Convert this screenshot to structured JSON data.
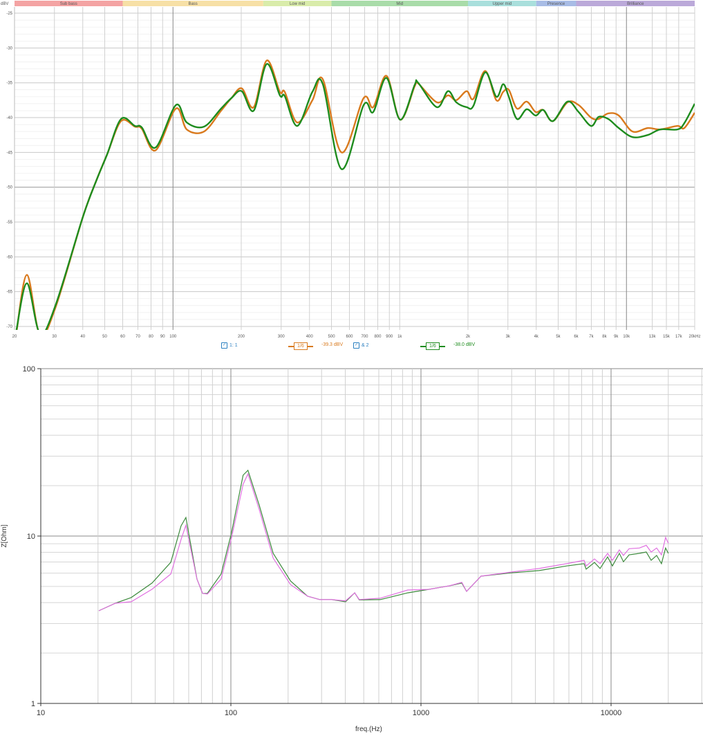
{
  "chart_data": [
    {
      "type": "line",
      "xscale": "log",
      "yunit": "dBV",
      "xlim": [
        20,
        20000
      ],
      "ylim": [
        -70.5,
        -24.1
      ],
      "grid": true,
      "x_tick_labels": [
        "20",
        "30",
        "40",
        "50",
        "60",
        "70",
        "80",
        "90",
        "100",
        "200",
        "300",
        "400",
        "500",
        "600",
        "700",
        "800",
        "900",
        "1k",
        "2k",
        "3k",
        "4k",
        "5k",
        "6k",
        "7k",
        "8k",
        "9k",
        "10k",
        "13k",
        "15k",
        "17k",
        "20kHz"
      ],
      "x_tick_values": [
        20,
        30,
        40,
        50,
        60,
        70,
        80,
        90,
        100,
        200,
        300,
        400,
        500,
        600,
        700,
        800,
        900,
        1000,
        2000,
        3000,
        4000,
        5000,
        6000,
        7000,
        8000,
        9000,
        10000,
        13000,
        15000,
        17000,
        20000
      ],
      "y_tick_labels": [
        "-25",
        "-30",
        "-35",
        "-40",
        "-45",
        "-50",
        "-55",
        "-60",
        "-65",
        "-70"
      ],
      "y_tick_values": [
        -25,
        -30,
        -35,
        -40,
        -45,
        -50,
        -55,
        -60,
        -65,
        -70
      ],
      "bands": [
        {
          "label": "Sub bass",
          "from": 20,
          "to": 60,
          "color": "#f4a3a3"
        },
        {
          "label": "Bass",
          "from": 60,
          "to": 250,
          "color": "#f7e0a6"
        },
        {
          "label": "Low mid",
          "from": 250,
          "to": 500,
          "color": "#d9ecaa"
        },
        {
          "label": "Mid",
          "from": 500,
          "to": 2000,
          "color": "#a9dca9"
        },
        {
          "label": "Upper mid",
          "from": 2000,
          "to": 4000,
          "color": "#a9dfdc"
        },
        {
          "label": "Presence",
          "from": 4000,
          "to": 6000,
          "color": "#a8bce6"
        },
        {
          "label": "Brilliance",
          "from": 6000,
          "to": 20000,
          "color": "#bba9d9"
        }
      ],
      "series": [
        {
          "name": "1: 1",
          "smoothing": "1/6",
          "readout": "-39.3 dBV",
          "color": "#d97a1e",
          "points": [
            [
              20.4,
              -70.8
            ],
            [
              22.7,
              -62.6
            ],
            [
              25.9,
              -71.2
            ],
            [
              30.3,
              -67.3
            ],
            [
              40.1,
              -54.2
            ],
            [
              46.1,
              -48.9
            ],
            [
              51.2,
              -45.3
            ],
            [
              59,
              -40.5
            ],
            [
              67.9,
              -41.3
            ],
            [
              72.8,
              -41.6
            ],
            [
              83.8,
              -44.7
            ],
            [
              103,
              -38.7
            ],
            [
              115,
              -41.7
            ],
            [
              137,
              -42
            ],
            [
              163,
              -39
            ],
            [
              181,
              -37.2
            ],
            [
              201,
              -35.8
            ],
            [
              227,
              -38.5
            ],
            [
              259,
              -31.8
            ],
            [
              296,
              -36.3
            ],
            [
              311,
              -36.3
            ],
            [
              353,
              -40.7
            ],
            [
              412,
              -37.5
            ],
            [
              458,
              -34.5
            ],
            [
              554,
              -45
            ],
            [
              693,
              -37.2
            ],
            [
              764,
              -38.5
            ],
            [
              874,
              -34
            ],
            [
              1005,
              -40.3
            ],
            [
              1164,
              -35.5
            ],
            [
              1206,
              -35.1
            ],
            [
              1458,
              -37.8
            ],
            [
              1632,
              -36.8
            ],
            [
              1776,
              -37.5
            ],
            [
              1972,
              -36.2
            ],
            [
              2114,
              -37.3
            ],
            [
              2382,
              -33.3
            ],
            [
              2667,
              -37.5
            ],
            [
              2860,
              -36.3
            ],
            [
              3027,
              -36
            ],
            [
              3290,
              -38.7
            ],
            [
              3630,
              -37.7
            ],
            [
              3978,
              -39.2
            ],
            [
              4296,
              -38.9
            ],
            [
              4742,
              -40.5
            ],
            [
              5496,
              -37.8
            ],
            [
              6152,
              -38.2
            ],
            [
              6980,
              -40
            ],
            [
              7537,
              -40.2
            ],
            [
              8318,
              -39.4
            ],
            [
              9248,
              -39.7
            ],
            [
              10638,
              -42
            ],
            [
              12416,
              -41.5
            ],
            [
              14086,
              -41.7
            ],
            [
              16790,
              -41.2
            ],
            [
              17996,
              -41.5
            ],
            [
              20000,
              -39.3
            ]
          ]
        },
        {
          "name": "& 2",
          "smoothing": "1/6",
          "readout": "-38.0 dBV",
          "color": "#1e8c1e",
          "points": [
            [
              20.4,
              -70.5
            ],
            [
              22.7,
              -63.8
            ],
            [
              25.9,
              -71
            ],
            [
              30.3,
              -67
            ],
            [
              40.1,
              -54.2
            ],
            [
              46.1,
              -48.9
            ],
            [
              51.2,
              -45.3
            ],
            [
              59,
              -40.2
            ],
            [
              67.9,
              -41.2
            ],
            [
              72.8,
              -41.4
            ],
            [
              83.8,
              -44.3
            ],
            [
              103,
              -38.2
            ],
            [
              115,
              -40.7
            ],
            [
              137,
              -41.3
            ],
            [
              163,
              -38.7
            ],
            [
              181,
              -37.2
            ],
            [
              201,
              -36.2
            ],
            [
              227,
              -39
            ],
            [
              259,
              -32.3
            ],
            [
              296,
              -36.8
            ],
            [
              311,
              -36.9
            ],
            [
              353,
              -41.2
            ],
            [
              412,
              -36.3
            ],
            [
              458,
              -35.2
            ],
            [
              554,
              -47.4
            ],
            [
              693,
              -38.2
            ],
            [
              764,
              -39.2
            ],
            [
              874,
              -34.3
            ],
            [
              1005,
              -40.3
            ],
            [
              1164,
              -35.3
            ],
            [
              1206,
              -35
            ],
            [
              1458,
              -38.5
            ],
            [
              1632,
              -36.2
            ],
            [
              1776,
              -37.8
            ],
            [
              1972,
              -38.5
            ],
            [
              2114,
              -38.3
            ],
            [
              2382,
              -33.5
            ],
            [
              2667,
              -37
            ],
            [
              2860,
              -35.2
            ],
            [
              3027,
              -37
            ],
            [
              3290,
              -40.2
            ],
            [
              3630,
              -38.8
            ],
            [
              3978,
              -39.7
            ],
            [
              4296,
              -38.9
            ],
            [
              4742,
              -40.5
            ],
            [
              5496,
              -37.7
            ],
            [
              6152,
              -39.2
            ],
            [
              6980,
              -41.2
            ],
            [
              7537,
              -39.9
            ],
            [
              8318,
              -40.2
            ],
            [
              9248,
              -41.5
            ],
            [
              10638,
              -42.8
            ],
            [
              12416,
              -42.5
            ],
            [
              14086,
              -41.7
            ],
            [
              16790,
              -41.7
            ],
            [
              17996,
              -40.8
            ],
            [
              20000,
              -38
            ]
          ]
        }
      ]
    },
    {
      "type": "line",
      "xscale": "log",
      "yscale": "log",
      "xlabel": "freq.(Hz)",
      "ylabel": "Z[Ohm]",
      "xlim": [
        10,
        30000
      ],
      "ylim": [
        1,
        100
      ],
      "grid": true,
      "x_tick_labels": [
        "10",
        "100",
        "1000",
        "10000"
      ],
      "x_tick_values": [
        10,
        100,
        1000,
        10000
      ],
      "y_tick_labels": [
        "1",
        "10",
        "100"
      ],
      "y_tick_values": [
        1,
        10,
        100
      ],
      "series": [
        {
          "color": "#3d8a3d",
          "points": [
            [
              20.2,
              3.58
            ],
            [
              24.7,
              3.97
            ],
            [
              29.9,
              4.29
            ],
            [
              38.5,
              5.24
            ],
            [
              48.3,
              6.97
            ],
            [
              54.7,
              11.5
            ],
            [
              58,
              12.9
            ],
            [
              66.3,
              5.54
            ],
            [
              71,
              4.54
            ],
            [
              75.2,
              4.55
            ],
            [
              88.9,
              5.93
            ],
            [
              100.8,
              10.5
            ],
            [
              116,
              23.1
            ],
            [
              123,
              24.7
            ],
            [
              141,
              15.3
            ],
            [
              167,
              7.88
            ],
            [
              206,
              5.39
            ],
            [
              253,
              4.37
            ],
            [
              294,
              4.17
            ],
            [
              340,
              4.17
            ],
            [
              401,
              4.05
            ],
            [
              448,
              4.58
            ],
            [
              474,
              4.15
            ],
            [
              610,
              4.17
            ],
            [
              853,
              4.58
            ],
            [
              1097,
              4.8
            ],
            [
              1410,
              5.04
            ],
            [
              1640,
              5.24
            ],
            [
              1738,
              4.67
            ],
            [
              2070,
              5.76
            ],
            [
              2994,
              6.03
            ],
            [
              4188,
              6.22
            ],
            [
              5850,
              6.63
            ],
            [
              7210,
              6.84
            ],
            [
              7400,
              6.34
            ],
            [
              8180,
              6.95
            ],
            [
              8750,
              6.4
            ],
            [
              9590,
              7.5
            ],
            [
              10170,
              6.63
            ],
            [
              11060,
              7.88
            ],
            [
              11620,
              7.02
            ],
            [
              12440,
              7.72
            ],
            [
              14100,
              7.88
            ],
            [
              15320,
              8.03
            ],
            [
              16250,
              7.16
            ],
            [
              17370,
              7.66
            ],
            [
              18410,
              6.84
            ],
            [
              19360,
              8.48
            ],
            [
              20000,
              7.88
            ]
          ]
        },
        {
          "color": "#e070e0",
          "points": [
            [
              20.2,
              3.58
            ],
            [
              24.7,
              3.97
            ],
            [
              29.9,
              4.05
            ],
            [
              38.5,
              4.81
            ],
            [
              48.3,
              5.93
            ],
            [
              54.7,
              9.53
            ],
            [
              58,
              11.6
            ],
            [
              66.3,
              5.54
            ],
            [
              71,
              4.54
            ],
            [
              75.2,
              4.5
            ],
            [
              88.9,
              5.54
            ],
            [
              100.8,
              9.8
            ],
            [
              116,
              20.4
            ],
            [
              123,
              23.5
            ],
            [
              141,
              14.4
            ],
            [
              167,
              7.38
            ],
            [
              206,
              5.13
            ],
            [
              253,
              4.37
            ],
            [
              294,
              4.17
            ],
            [
              340,
              4.17
            ],
            [
              401,
              4.1
            ],
            [
              448,
              4.58
            ],
            [
              474,
              4.17
            ],
            [
              610,
              4.25
            ],
            [
              853,
              4.76
            ],
            [
              1097,
              4.8
            ],
            [
              1410,
              5.04
            ],
            [
              1640,
              5.29
            ],
            [
              1738,
              4.67
            ],
            [
              2070,
              5.76
            ],
            [
              2994,
              6.1
            ],
            [
              4188,
              6.4
            ],
            [
              5850,
              6.84
            ],
            [
              7210,
              7.16
            ],
            [
              7400,
              6.63
            ],
            [
              8180,
              7.3
            ],
            [
              8750,
              6.84
            ],
            [
              9590,
              7.88
            ],
            [
              10170,
              7.16
            ],
            [
              11060,
              8.27
            ],
            [
              11620,
              7.66
            ],
            [
              12440,
              8.4
            ],
            [
              14100,
              8.48
            ],
            [
              15320,
              8.8
            ],
            [
              16250,
              8.03
            ],
            [
              17370,
              8.48
            ],
            [
              18410,
              7.72
            ],
            [
              19360,
              9.8
            ],
            [
              20000,
              9.06
            ]
          ]
        }
      ]
    }
  ]
}
